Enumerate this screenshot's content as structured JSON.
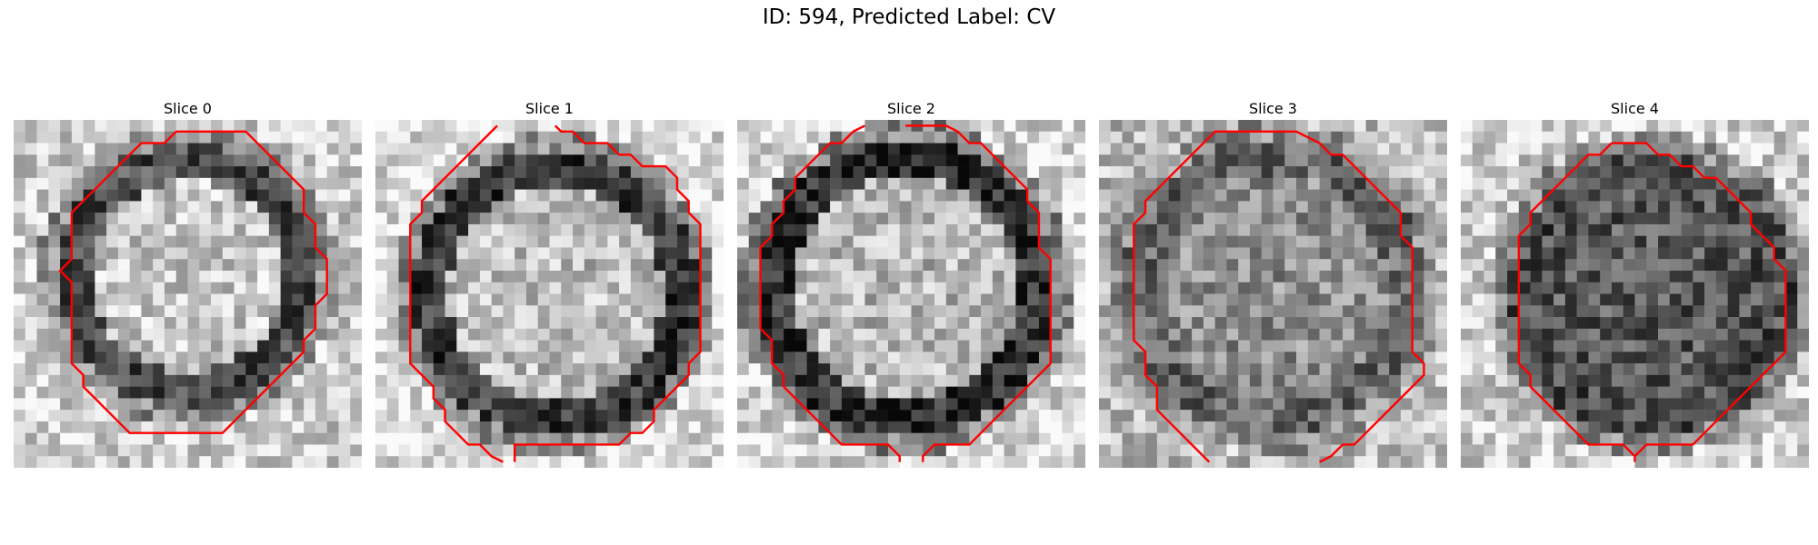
{
  "figure": {
    "title": "ID: 594, Predicted Label: CV"
  },
  "colors": {
    "contour": "#ff0000",
    "colormap": "grayscale"
  },
  "panels": [
    {
      "title": "Slice 0"
    },
    {
      "title": "Slice 1"
    },
    {
      "title": "Slice 2"
    },
    {
      "title": "Slice 3"
    },
    {
      "title": "Slice 4"
    }
  ]
}
